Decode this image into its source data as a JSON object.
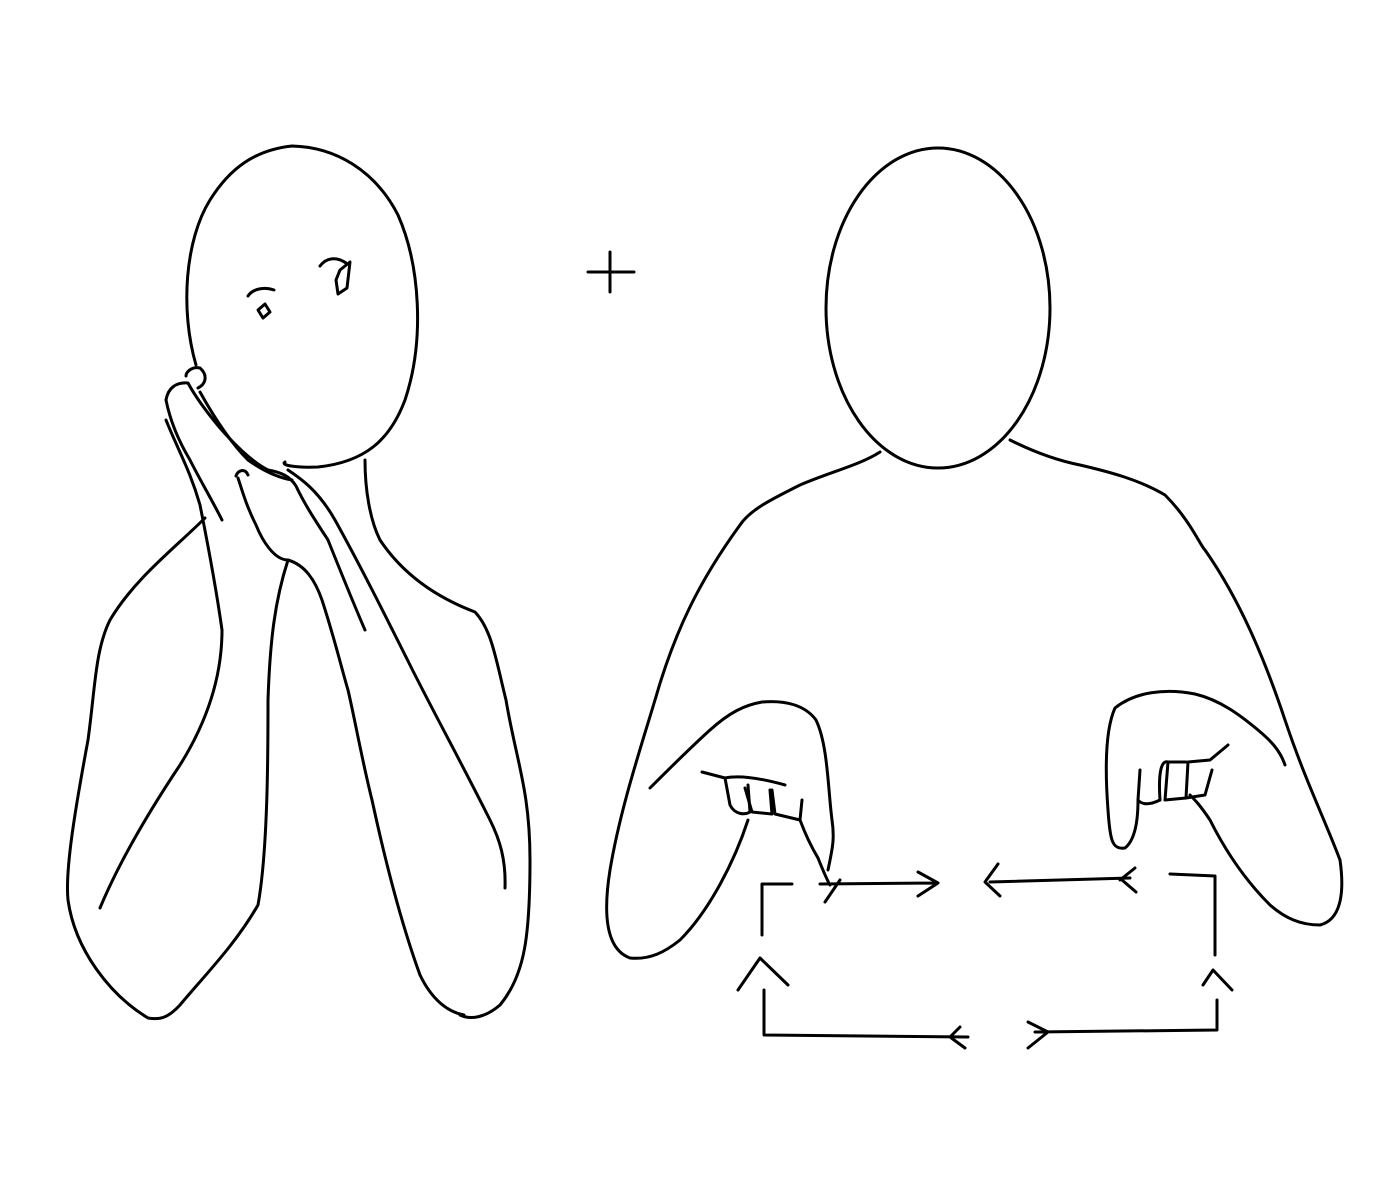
{
  "title": "",
  "colors": {
    "background": "#ffffff",
    "ink": "#000000"
  },
  "panels": [
    {
      "name": "sleep-sign",
      "description_icon": "signer-hands-pressed-to-cheek-icon"
    },
    {
      "name": "room-sign",
      "description_icon": "signer-outlining-rectangle-icon"
    }
  ],
  "connector": {
    "icon": "plus-icon"
  },
  "movement": {
    "icon": "rectangular-outline-arrows-icon"
  }
}
